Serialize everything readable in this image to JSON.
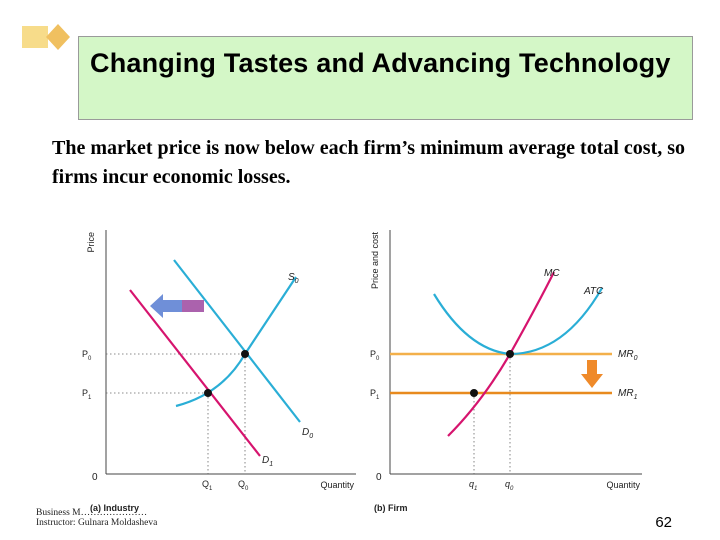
{
  "slide": {
    "title": "Changing Tastes and Advancing Technology",
    "subtitle": "The market price is now below each firm’s minimum average total cost, so firms incur economic losses.",
    "footer_line1": "Business M…………………",
    "footer_line2": "Instructor: Gulnara Moldasheva",
    "page_number": "62",
    "accent_color": "#f0c060"
  },
  "chart_data": [
    {
      "type": "line",
      "panel_label": "(a) Industry",
      "ylabel": "Price",
      "xlabel": "Quantity",
      "origin_label": "0",
      "curves": [
        {
          "name": "S0",
          "label": "S",
          "sub": "0",
          "color": "#2aaed6"
        },
        {
          "name": "D0",
          "label": "D",
          "sub": "0",
          "color": "#2aaed6"
        },
        {
          "name": "D1",
          "label": "D",
          "sub": "1",
          "color": "#d6146e"
        }
      ],
      "y_ticks": [
        {
          "label": "P",
          "sub": "0"
        },
        {
          "label": "P",
          "sub": "1"
        }
      ],
      "x_ticks": [
        {
          "label": "Q",
          "sub": "1"
        },
        {
          "label": "Q",
          "sub": "0"
        }
      ],
      "annotations": [
        "Demand shifts leftward from D0 to D1 (arrow)"
      ]
    },
    {
      "type": "line",
      "panel_label": "(b) Firm",
      "ylabel": "Price and cost",
      "xlabel": "Quantity",
      "origin_label": "0",
      "curves": [
        {
          "name": "MC",
          "label": "MC",
          "sub": "",
          "color": "#d6146e"
        },
        {
          "name": "ATC",
          "label": "ATC",
          "sub": "",
          "color": "#2aaed6"
        },
        {
          "name": "MR0",
          "label": "MR",
          "sub": "0",
          "color": "#f3b04a"
        },
        {
          "name": "MR1",
          "label": "MR",
          "sub": "1",
          "color": "#e88a1e"
        }
      ],
      "y_ticks": [
        {
          "label": "P",
          "sub": "0"
        },
        {
          "label": "P",
          "sub": "1"
        }
      ],
      "x_ticks": [
        {
          "label": "q",
          "sub": "1"
        },
        {
          "label": "q",
          "sub": "0"
        }
      ],
      "annotations": [
        "Marginal revenue falls from MR0 to MR1 (arrow)"
      ]
    }
  ]
}
